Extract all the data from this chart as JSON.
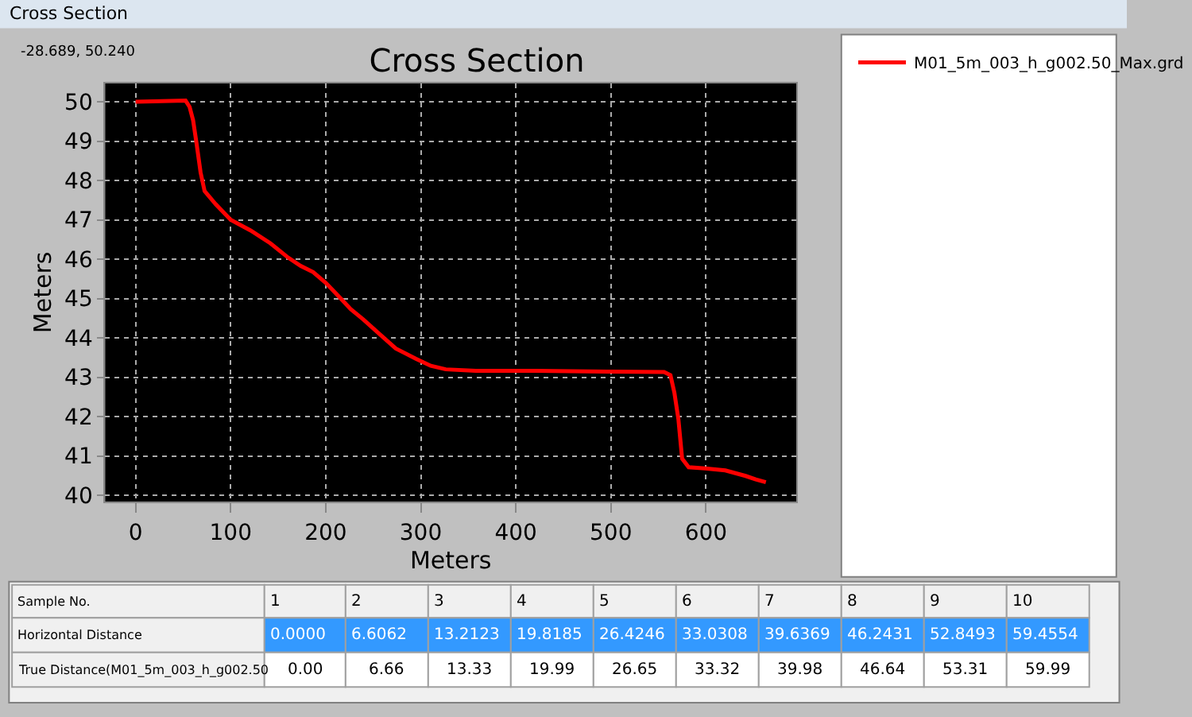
{
  "chart_data": {
    "type": "line",
    "title": "Cross Section",
    "xlabel": "Meters",
    "ylabel": "Meters",
    "x": [
      0,
      52.6,
      56.8,
      60.5,
      64.2,
      68.4,
      72.6,
      84.2,
      100,
      121,
      142,
      160.5,
      173.7,
      186.8,
      200,
      215.8,
      226.3,
      239.5,
      257.9,
      273.7,
      294.7,
      310.5,
      326.3,
      357.9,
      421,
      500,
      556,
      562.6,
      566.8,
      571,
      574.9,
      581.8,
      598.9,
      620.3,
      641.7,
      652.4,
      663
    ],
    "series": [
      {
        "name": "M01_5m_003_h_g002.50_Max.grd",
        "color": "#ff0000",
        "values": [
          50.0,
          50.03,
          49.87,
          49.53,
          48.93,
          48.2,
          47.73,
          47.4,
          47.0,
          46.73,
          46.4,
          46.04,
          45.83,
          45.67,
          45.4,
          45.0,
          44.73,
          44.47,
          44.07,
          43.73,
          43.47,
          43.29,
          43.2,
          43.16,
          43.16,
          43.14,
          43.13,
          43.05,
          42.6,
          41.93,
          40.93,
          40.71,
          40.68,
          40.63,
          40.49,
          40.4,
          40.33
        ]
      }
    ],
    "xlim": [
      -32,
      695
    ],
    "ylim": [
      39.84,
      50.47
    ],
    "xticks": [
      0,
      100,
      200,
      300,
      400,
      500,
      600
    ],
    "yticks": [
      40,
      41,
      42,
      43,
      44,
      45,
      46,
      47,
      48,
      49,
      50
    ],
    "grid": true,
    "legend": "right",
    "marker": "none",
    "line_style": "solid",
    "annotations": [
      "Cross Section",
      "-28.689, 50.240",
      "Sample No.",
      "1",
      "2",
      "3",
      "4",
      "5",
      "6",
      "7",
      "8",
      "9",
      "10",
      "Horizontal Distance",
      "0.0000",
      "6.6062",
      "13.2123",
      "19.8185",
      "26.4246",
      "33.0308",
      "39.6369",
      "46.2431",
      "52.8493",
      "59.4554",
      "True Distance(M01_5m_003_h_g002.50",
      "0.00",
      "6.66",
      "13.33",
      "19.99",
      "26.65",
      "33.32",
      "39.98",
      "46.64",
      "53.31",
      "59.99"
    ]
  }
}
